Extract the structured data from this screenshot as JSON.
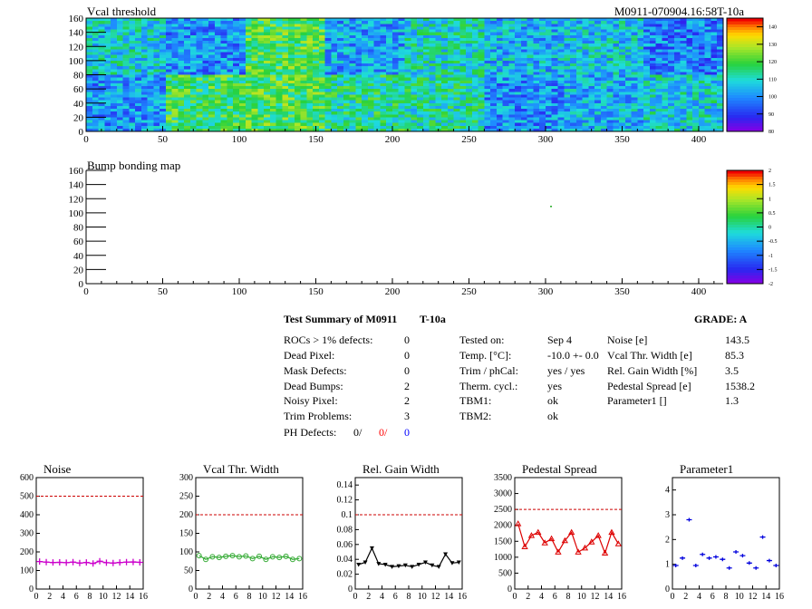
{
  "header": {
    "title_left": "Vcal threshold",
    "title_right": "M0911-070904.16:58T-10a"
  },
  "map1": {
    "x_ticks": [
      "0",
      "50",
      "100",
      "150",
      "200",
      "250",
      "300",
      "350",
      "400"
    ],
    "y_ticks": [
      "0",
      "20",
      "40",
      "60",
      "80",
      "100",
      "120",
      "140",
      "160"
    ],
    "z_ticks": [
      "80",
      "90",
      "100",
      "110",
      "120",
      "130",
      "140"
    ]
  },
  "map2": {
    "title": "Bump bonding map",
    "x_ticks": [
      "0",
      "50",
      "100",
      "150",
      "200",
      "250",
      "300",
      "350",
      "400"
    ],
    "y_ticks": [
      "0",
      "20",
      "40",
      "60",
      "80",
      "100",
      "120",
      "140",
      "160"
    ],
    "z_ticks": [
      "-2",
      "-1.5",
      "-1",
      "-0.5",
      "0",
      "0.5",
      "1",
      "1.5",
      "2"
    ]
  },
  "summary": {
    "title": "Test Summary of M0911",
    "tag": "T-10a",
    "grade_label": "GRADE:  A",
    "defects": [
      {
        "label": "ROCs > 1% defects:",
        "value": "0"
      },
      {
        "label": "Dead Pixel:",
        "value": "0"
      },
      {
        "label": "Mask Defects:",
        "value": "0"
      },
      {
        "label": "Dead Bumps:",
        "value": "2"
      },
      {
        "label": "Noisy Pixel:",
        "value": "2"
      },
      {
        "label": "Trim Problems:",
        "value": "3"
      }
    ],
    "ph_label": "PH Defects:",
    "ph_values": [
      "0/",
      "0/",
      "0"
    ],
    "ph_colors": [
      "#000000",
      "#ff0000",
      "#0000ff"
    ],
    "conditions": [
      {
        "label": "Tested on:",
        "value": "Sep 4"
      },
      {
        "label": "Temp. [°C]:",
        "value": "-10.0 +- 0.0"
      },
      {
        "label": "Trim / phCal:",
        "value": "yes / yes"
      },
      {
        "label": "Therm. cycl.:",
        "value": "yes"
      },
      {
        "label": "TBM1:",
        "value": "ok"
      },
      {
        "label": "TBM2:",
        "value": "ok"
      }
    ],
    "results": [
      {
        "label": "Noise [e]",
        "value": "143.5"
      },
      {
        "label": "Vcal Thr. Width [e]",
        "value": "85.3"
      },
      {
        "label": "Rel. Gain Width [%]",
        "value": "3.5"
      },
      {
        "label": "Pedestal Spread [e]",
        "value": "1538.2"
      },
      {
        "label": "Parameter1 []",
        "value": "1.3"
      }
    ]
  },
  "chart_data": [
    {
      "type": "heatmap",
      "title": "Vcal threshold",
      "xlim": [
        0,
        416
      ],
      "ylim": [
        0,
        160
      ],
      "zlim": [
        80,
        145
      ],
      "blocks_top": [
        108,
        100,
        120,
        102,
        110,
        104,
        106,
        98
      ],
      "blocks_bottom": [
        101,
        118,
        120,
        114,
        112,
        100,
        104,
        108
      ]
    },
    {
      "type": "heatmap",
      "title": "Bump bonding map",
      "xlim": [
        0,
        416
      ],
      "ylim": [
        0,
        160
      ],
      "zlim": [
        -2,
        2
      ],
      "points": [
        {
          "x": 303,
          "y": 110
        }
      ]
    },
    {
      "type": "line",
      "title": "Noise",
      "color": "#cc00cc",
      "marker": "plus",
      "ylim": [
        0,
        600
      ],
      "threshold": 500,
      "y_ticks": [
        "0",
        "100",
        "200",
        "300",
        "400",
        "500",
        "600"
      ],
      "x": [
        0,
        1,
        2,
        3,
        4,
        5,
        6,
        7,
        8,
        9,
        10,
        11,
        12,
        13,
        14,
        15
      ],
      "values": [
        148,
        145,
        143,
        144,
        142,
        145,
        140,
        143,
        138,
        150,
        142,
        140,
        143,
        145,
        146,
        144
      ]
    },
    {
      "type": "line",
      "title": "Vcal Thr. Width",
      "color": "#33aa33",
      "marker": "circle",
      "ylim": [
        0,
        300
      ],
      "threshold": 200,
      "y_ticks": [
        "0",
        "50",
        "100",
        "150",
        "200",
        "250",
        "300"
      ],
      "x": [
        0,
        1,
        2,
        3,
        4,
        5,
        6,
        7,
        8,
        9,
        10,
        11,
        12,
        13,
        14,
        15
      ],
      "values": [
        90,
        80,
        87,
        85,
        88,
        90,
        87,
        89,
        82,
        88,
        80,
        87,
        85,
        88,
        80,
        82
      ]
    },
    {
      "type": "line",
      "title": "Rel. Gain Width",
      "color": "#000000",
      "marker": "triangle-down",
      "ylim": [
        0,
        0.15
      ],
      "threshold": 0.1,
      "y_ticks": [
        "0",
        "0.02",
        "0.04",
        "0.06",
        "0.08",
        "0.1",
        "0.12",
        "0.14"
      ],
      "x": [
        0,
        1,
        2,
        3,
        4,
        5,
        6,
        7,
        8,
        9,
        10,
        11,
        12,
        13,
        14,
        15
      ],
      "values": [
        0.033,
        0.036,
        0.055,
        0.034,
        0.033,
        0.03,
        0.031,
        0.032,
        0.03,
        0.033,
        0.036,
        0.032,
        0.03,
        0.047,
        0.035,
        0.036
      ]
    },
    {
      "type": "line",
      "title": "Pedestal Spread",
      "color": "#dd0000",
      "marker": "triangle-up",
      "ylim": [
        0,
        3500
      ],
      "threshold": 2500,
      "y_ticks": [
        "0",
        "500",
        "1000",
        "1500",
        "2000",
        "2500",
        "3000",
        "3500"
      ],
      "x": [
        0,
        1,
        2,
        3,
        4,
        5,
        6,
        7,
        8,
        9,
        10,
        11,
        12,
        13,
        14,
        15
      ],
      "values": [
        2050,
        1330,
        1680,
        1780,
        1450,
        1580,
        1160,
        1520,
        1780,
        1160,
        1290,
        1480,
        1680,
        1130,
        1780,
        1420
      ]
    },
    {
      "type": "scatter",
      "title": "Parameter1",
      "color": "#0000dd",
      "marker": "plus",
      "ylim": [
        0,
        4.5
      ],
      "y_ticks": [
        "0",
        "1",
        "2",
        "3",
        "4"
      ],
      "x": [
        0,
        1,
        2,
        3,
        4,
        5,
        6,
        7,
        8,
        9,
        10,
        11,
        12,
        13,
        14,
        15
      ],
      "values": [
        0.95,
        1.25,
        2.8,
        0.95,
        1.4,
        1.25,
        1.3,
        1.2,
        0.85,
        1.5,
        1.35,
        1.05,
        0.85,
        2.1,
        1.15,
        0.95
      ]
    }
  ],
  "small_x_ticks": [
    "0",
    "2",
    "4",
    "6",
    "8",
    "10",
    "12",
    "14",
    "16"
  ]
}
